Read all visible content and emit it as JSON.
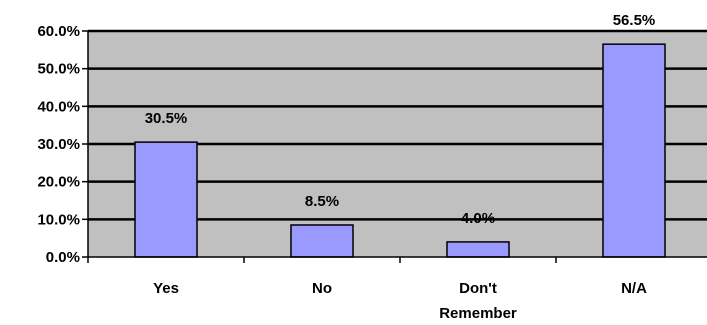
{
  "chart_data": {
    "type": "bar",
    "categories": [
      [
        "Yes"
      ],
      [
        "No"
      ],
      [
        "Don't",
        "Remember"
      ],
      [
        "N/A"
      ]
    ],
    "values": [
      30.5,
      8.5,
      4.0,
      56.5
    ],
    "data_labels": [
      "30.5%",
      "8.5%",
      "4.0%",
      "56.5%"
    ],
    "y_ticks": [
      0,
      10,
      20,
      30,
      40,
      50,
      60
    ],
    "y_tick_labels": [
      "0.0%",
      "10.0%",
      "20.0%",
      "30.0%",
      "40.0%",
      "50.0%",
      "60.0%"
    ],
    "ylim": [
      0,
      60
    ],
    "grid": true,
    "legend": false,
    "colors": {
      "bar_fill": "#9999ff",
      "bar_stroke": "#000000",
      "plot_background": "#c0c0c0",
      "gridline": "#000000"
    }
  }
}
